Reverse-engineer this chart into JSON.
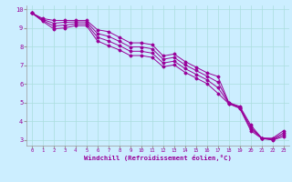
{
  "xlabel": "Windchill (Refroidissement éolien,°C)",
  "background_color": "#cceeff",
  "grid_color": "#aadddd",
  "line_color": "#990099",
  "xlim": [
    -0.5,
    23.5
  ],
  "ylim": [
    2.7,
    10.2
  ],
  "yticks": [
    3,
    4,
    5,
    6,
    7,
    8,
    9,
    10
  ],
  "xticks": [
    0,
    1,
    2,
    3,
    4,
    5,
    6,
    7,
    8,
    9,
    10,
    11,
    12,
    13,
    14,
    15,
    16,
    17,
    18,
    19,
    20,
    21,
    22,
    23
  ],
  "line1_x": [
    0,
    1,
    2,
    3,
    4,
    5,
    6,
    7,
    8,
    9,
    10,
    11,
    12,
    13,
    14,
    15,
    16,
    17,
    18,
    19,
    20,
    21,
    22,
    23
  ],
  "line1_y": [
    9.8,
    9.5,
    9.4,
    9.4,
    9.4,
    9.4,
    8.9,
    8.8,
    8.5,
    8.2,
    8.2,
    8.1,
    7.5,
    7.6,
    7.2,
    6.9,
    6.6,
    6.4,
    5.0,
    4.8,
    3.8,
    3.1,
    3.1,
    3.5
  ],
  "line2_x": [
    0,
    1,
    2,
    3,
    4,
    5,
    6,
    7,
    8,
    9,
    10,
    11,
    12,
    13,
    14,
    15,
    16,
    17,
    18,
    19,
    20,
    21,
    22,
    23
  ],
  "line2_y": [
    9.8,
    9.45,
    9.25,
    9.3,
    9.32,
    9.32,
    8.7,
    8.55,
    8.28,
    7.98,
    7.98,
    7.88,
    7.32,
    7.42,
    7.02,
    6.72,
    6.42,
    6.1,
    4.98,
    4.75,
    3.7,
    3.1,
    3.05,
    3.38
  ],
  "line3_x": [
    0,
    1,
    2,
    3,
    4,
    5,
    6,
    7,
    8,
    9,
    10,
    11,
    12,
    13,
    14,
    15,
    16,
    17,
    18,
    19,
    20,
    21,
    22,
    23
  ],
  "line3_y": [
    9.8,
    9.4,
    9.1,
    9.15,
    9.22,
    9.22,
    8.5,
    8.3,
    8.05,
    7.75,
    7.75,
    7.65,
    7.12,
    7.22,
    6.82,
    6.52,
    6.22,
    5.8,
    4.96,
    4.72,
    3.6,
    3.1,
    3.02,
    3.28
  ],
  "line4_x": [
    0,
    1,
    2,
    3,
    4,
    5,
    6,
    7,
    8,
    9,
    10,
    11,
    12,
    13,
    14,
    15,
    16,
    17,
    18,
    19,
    20,
    21,
    22,
    23
  ],
  "line4_y": [
    9.8,
    9.35,
    8.95,
    9.0,
    9.12,
    9.12,
    8.3,
    8.05,
    7.82,
    7.52,
    7.52,
    7.42,
    6.92,
    7.02,
    6.62,
    6.32,
    6.02,
    5.5,
    4.94,
    4.69,
    3.5,
    3.08,
    3.0,
    3.18
  ]
}
